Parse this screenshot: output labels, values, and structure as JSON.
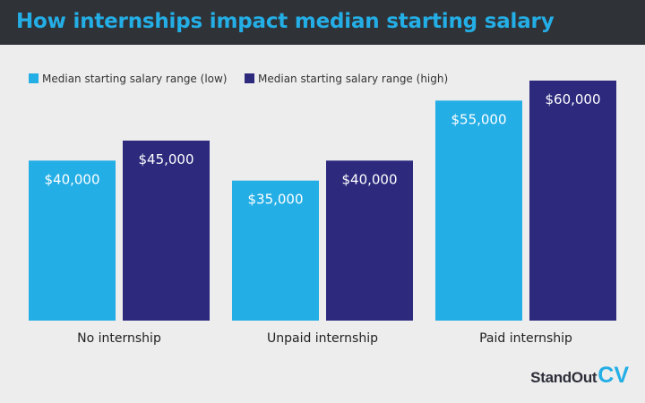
{
  "header": {
    "title": "How internships impact median starting salary"
  },
  "brand": {
    "name_main": "StandOut",
    "name_accent": "CV"
  },
  "colors": {
    "header_bg": "#2f3237",
    "title": "#24aee6",
    "low": "#24aee6",
    "high": "#2d2a7e",
    "background": "#ededed"
  },
  "chart_data": {
    "type": "bar",
    "title": "How internships impact median starting salary",
    "xlabel": "",
    "ylabel": "",
    "ylim": [
      0,
      60000
    ],
    "grid": false,
    "legend_position": "top-left",
    "categories": [
      "No internship",
      "Unpaid internship",
      "Paid internship"
    ],
    "series": [
      {
        "name": "Median starting salary range (low)",
        "color": "#24aee6",
        "values": [
          40000,
          35000,
          55000
        ],
        "labels": [
          "$40,000",
          "$35,000",
          "$55,000"
        ]
      },
      {
        "name": "Median starting salary range (high)",
        "color": "#2d2a7e",
        "values": [
          45000,
          40000,
          60000
        ],
        "labels": [
          "$45,000",
          "$40,000",
          "$60,000"
        ]
      }
    ]
  }
}
